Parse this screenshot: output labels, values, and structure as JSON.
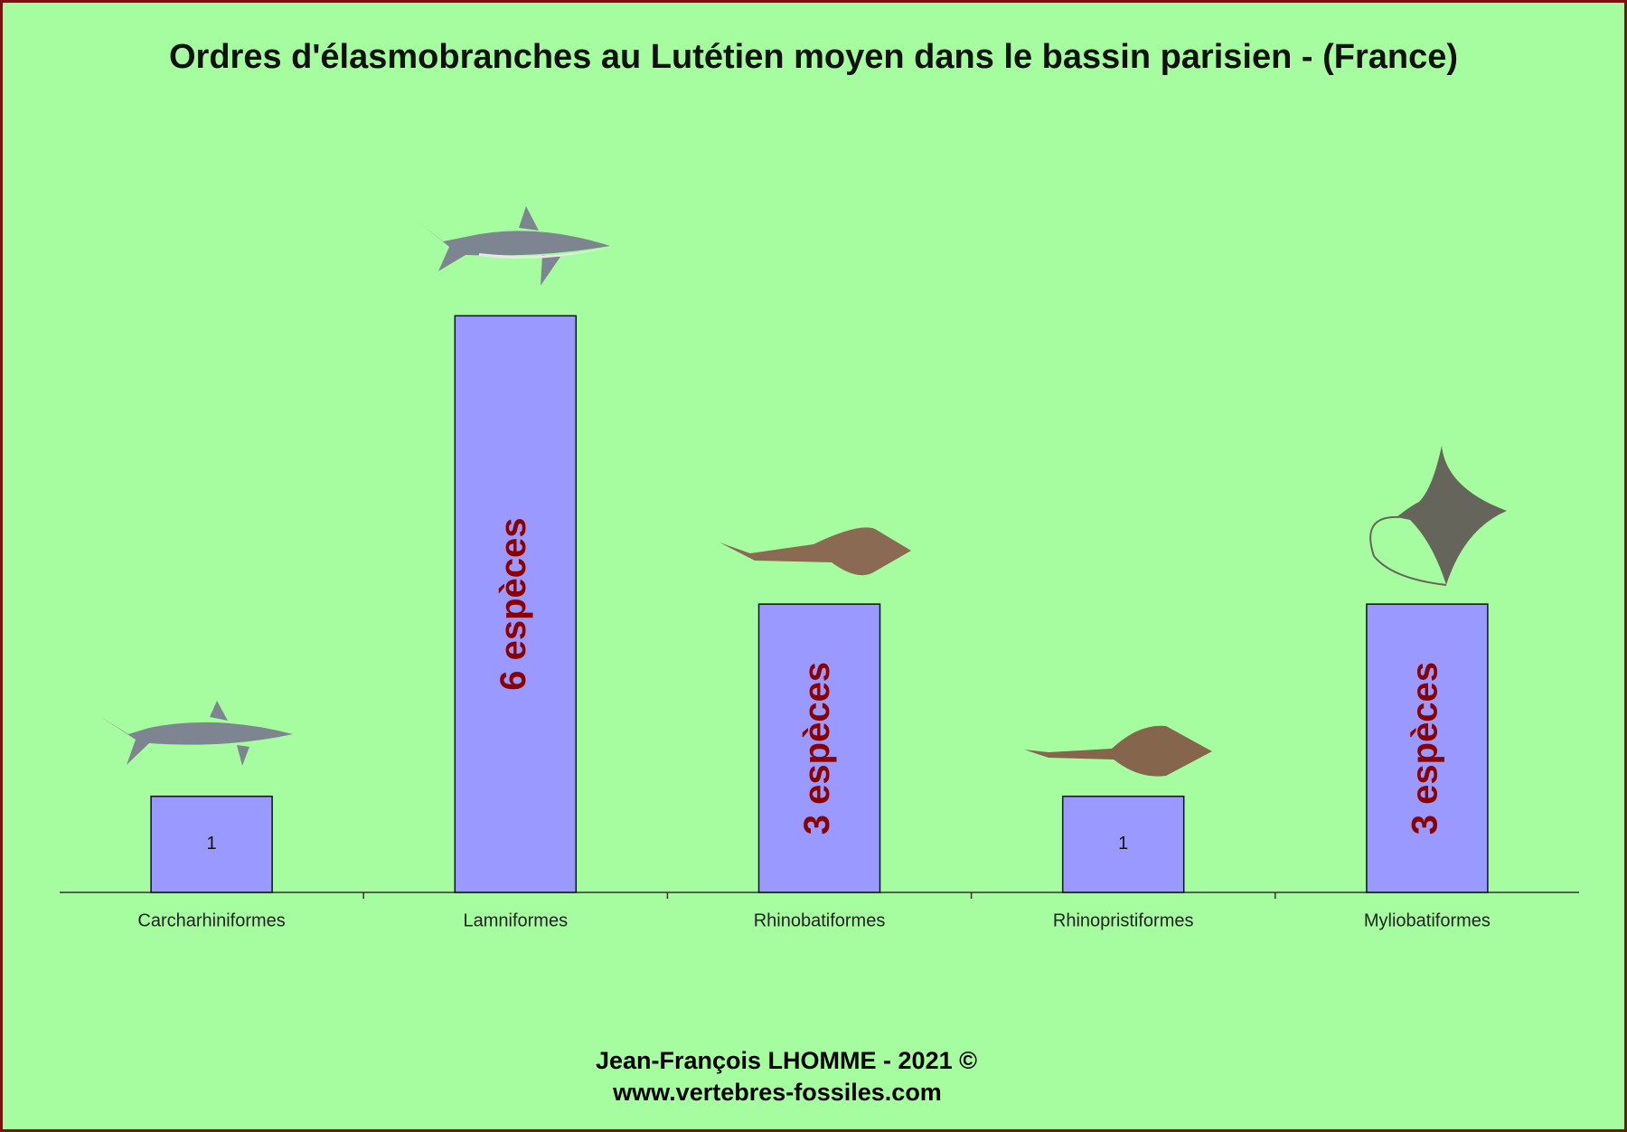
{
  "chart_data": {
    "type": "bar",
    "title": "Ordres d'élasmobranches au Lutétien moyen dans le bassin parisien -  (France)",
    "categories": [
      "Carcharhiniformes",
      "Lamniformes",
      "Rhinobatiformes",
      "Rhinopristiformes",
      "Myliobatiformes"
    ],
    "values": [
      1,
      6,
      3,
      1,
      3
    ],
    "value_labels": [
      "1",
      "6 espèces",
      "3 espèces",
      "1",
      "3 espèces"
    ],
    "color": "#9999ff",
    "ylim": [
      0,
      7
    ],
    "footer": [
      "Jean-François LHOMME  -  2021 ©",
      "www.vertebres-fossiles.com"
    ]
  }
}
